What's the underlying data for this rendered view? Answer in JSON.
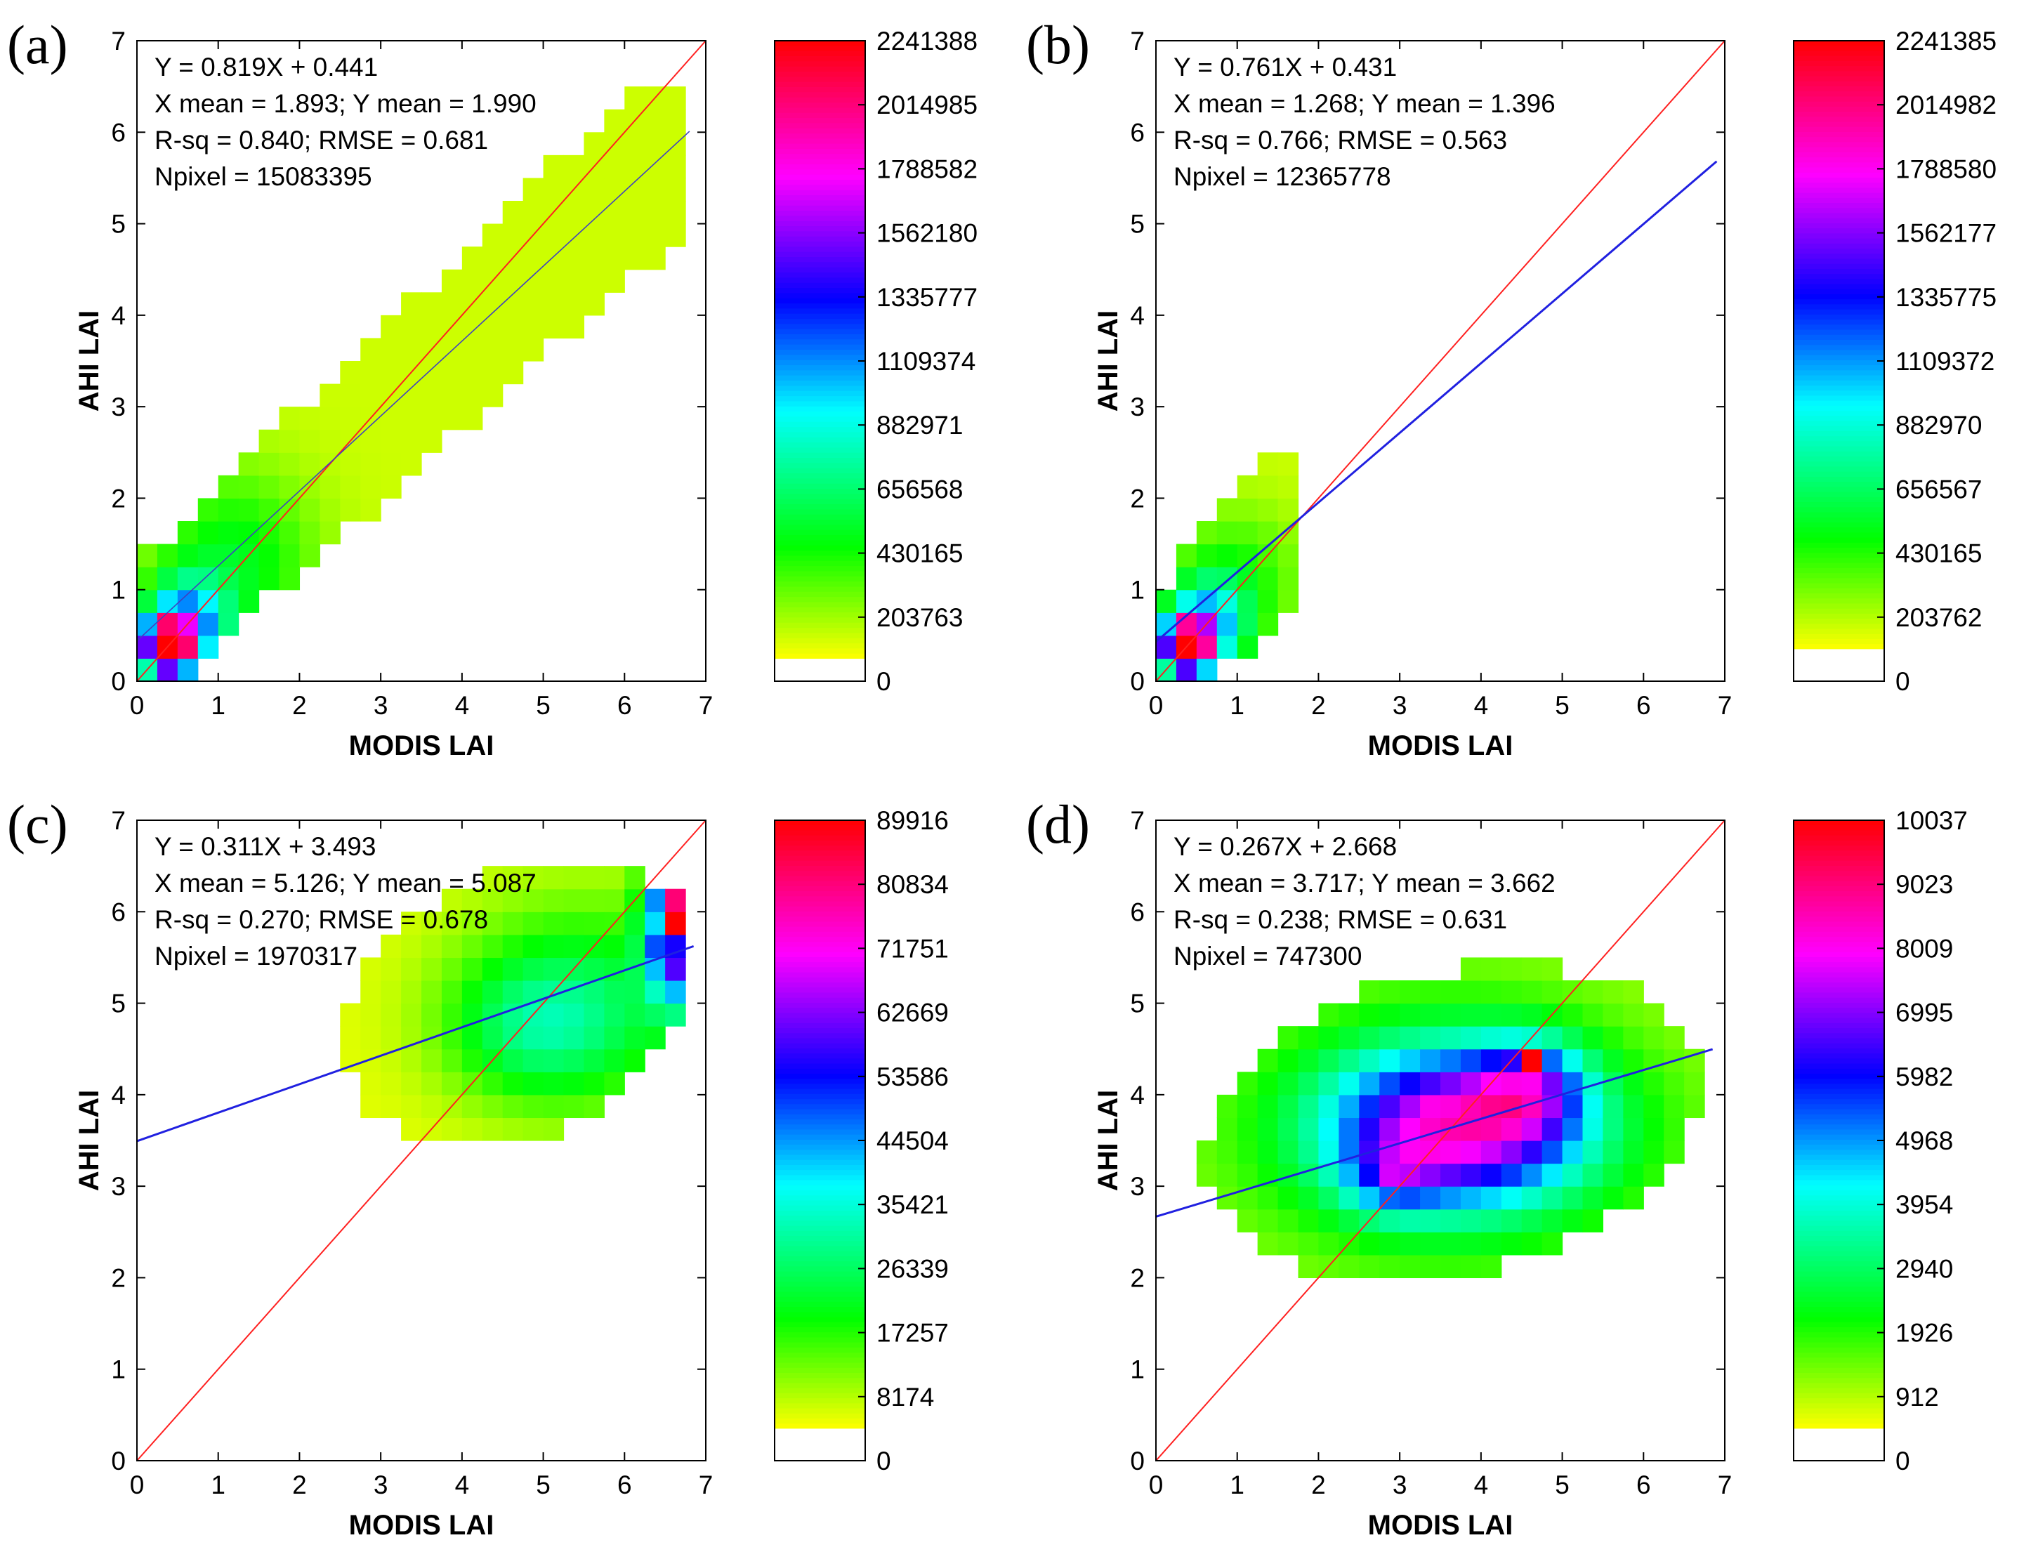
{
  "chart_data": [
    {
      "type": "heatmap",
      "panel_label": "(a)",
      "xlabel": "MODIS LAI",
      "ylabel": "AHI LAI",
      "xlim": [
        0,
        7
      ],
      "ylim": [
        0,
        7
      ],
      "xticks": [
        "0",
        "1",
        "2",
        "3",
        "4",
        "5",
        "6",
        "7"
      ],
      "yticks": [
        "0",
        "1",
        "2",
        "3",
        "4",
        "5",
        "6",
        "7"
      ],
      "stats": [
        "Y = 0.819X + 0.441",
        "X mean = 1.893; Y mean = 1.990",
        "R-sq = 0.840; RMSE = 0.681",
        "Npixel = 15083395"
      ],
      "fit": {
        "slope": 0.819,
        "intercept": 0.441,
        "x_range": [
          0,
          6.8
        ],
        "color": "#4040c0",
        "width": 1.6
      },
      "one_to_one": {
        "x_range": [
          0,
          7
        ],
        "color": "#ff2020"
      },
      "colorbar": {
        "ticks": [
          "2241388",
          "2014985",
          "1788582",
          "1562180",
          "1335777",
          "1109374",
          "882971",
          "656568",
          "430165",
          "203763",
          "0"
        ],
        "min": 0,
        "max": 2241388,
        "white_fraction": 0.035
      },
      "density": {
        "kind": "band",
        "fit_slope": 0.819,
        "fit_intercept": 0.441,
        "x_range": [
          0.1,
          6.8
        ],
        "y_range": [
          0,
          6.5
        ],
        "halfwidth": [
          0.35,
          0.55
        ],
        "min_value": 80000,
        "peaks": [
          {
            "x": 0.375,
            "y": 0.375,
            "sx": 0.2,
            "sy": 0.2,
            "amp": 2241388
          },
          {
            "x": 0.6,
            "y": 0.6,
            "sx": 0.35,
            "sy": 0.35,
            "amp": 1000000
          },
          {
            "x": 1.2,
            "y": 1.3,
            "sx": 0.7,
            "sy": 0.7,
            "amp": 380000
          }
        ],
        "extra_boxes": [
          [
            6.0,
            5.2,
            6.8,
            6.5
          ]
        ]
      }
    },
    {
      "type": "heatmap",
      "panel_label": "(b)",
      "xlabel": "MODIS LAI",
      "ylabel": "AHI LAI",
      "xlim": [
        0,
        7
      ],
      "ylim": [
        0,
        7
      ],
      "xticks": [
        "0",
        "1",
        "2",
        "3",
        "4",
        "5",
        "6",
        "7"
      ],
      "yticks": [
        "0",
        "1",
        "2",
        "3",
        "4",
        "5",
        "6",
        "7"
      ],
      "stats": [
        "Y = 0.761X + 0.431",
        "X mean = 1.268; Y mean = 1.396",
        "R-sq = 0.766; RMSE = 0.563",
        "Npixel = 12365778"
      ],
      "fit": {
        "slope": 0.761,
        "intercept": 0.431,
        "x_range": [
          0,
          6.9
        ],
        "color": "#2020e0",
        "width": 3
      },
      "one_to_one": {
        "x_range": [
          0,
          7
        ],
        "color": "#ff2020"
      },
      "colorbar": {
        "ticks": [
          "2241385",
          "2014982",
          "1788580",
          "1562177",
          "1335775",
          "1109372",
          "882970",
          "656567",
          "430165",
          "203762",
          "0"
        ],
        "min": 0,
        "max": 2241385,
        "white_fraction": 0.05
      },
      "density": {
        "kind": "band",
        "fit_slope": 0.95,
        "fit_intercept": 0.2,
        "x_range": [
          0.1,
          1.8
        ],
        "y_range": [
          0,
          2.5
        ],
        "halfwidth": [
          0.3,
          0.5
        ],
        "min_value": 80000,
        "peaks": [
          {
            "x": 0.375,
            "y": 0.375,
            "sx": 0.2,
            "sy": 0.2,
            "amp": 2241385
          },
          {
            "x": 0.6,
            "y": 0.6,
            "sx": 0.35,
            "sy": 0.35,
            "amp": 900000
          },
          {
            "x": 1.0,
            "y": 1.1,
            "sx": 0.55,
            "sy": 0.55,
            "amp": 300000
          }
        ],
        "extra_boxes": []
      }
    },
    {
      "type": "heatmap",
      "panel_label": "(c)",
      "xlabel": "MODIS LAI",
      "ylabel": "AHI LAI",
      "xlim": [
        0,
        7
      ],
      "ylim": [
        0,
        7
      ],
      "xticks": [
        "0",
        "1",
        "2",
        "3",
        "4",
        "5",
        "6",
        "7"
      ],
      "yticks": [
        "0",
        "1",
        "2",
        "3",
        "4",
        "5",
        "6",
        "7"
      ],
      "stats": [
        "Y = 0.311X + 3.493",
        "X mean = 5.126; Y mean = 5.087",
        "R-sq = 0.270; RMSE = 0.678",
        "Npixel = 1970317"
      ],
      "fit": {
        "slope": 0.311,
        "intercept": 3.493,
        "x_range": [
          0,
          6.85
        ],
        "color": "#2020e0",
        "width": 3
      },
      "one_to_one": {
        "x_range": [
          0,
          7
        ],
        "color": "#ff2020"
      },
      "colorbar": {
        "ticks": [
          "89916",
          "80834",
          "71751",
          "62669",
          "53586",
          "44504",
          "35421",
          "26339",
          "17257",
          "8174",
          "0"
        ],
        "min": 0,
        "max": 89916,
        "white_fraction": 0.05
      },
      "density": {
        "kind": "ellipse",
        "cx": 4.7,
        "cy": 5.0,
        "rx": 2.25,
        "ry": 1.45,
        "rot": 0.35,
        "min_value": 1500,
        "peaks": [
          {
            "x": 6.65,
            "y": 5.9,
            "sx": 0.25,
            "sy": 0.55,
            "amp": 72000
          },
          {
            "x": 5.5,
            "y": 5.0,
            "sx": 1.1,
            "sy": 0.8,
            "amp": 20000
          },
          {
            "x": 4.8,
            "y": 4.7,
            "sx": 0.7,
            "sy": 0.5,
            "amp": 12000
          }
        ],
        "cells": [
          {
            "x": 6.625,
            "y": 6.125,
            "v": 80834
          },
          {
            "x": 6.625,
            "y": 5.875,
            "v": 89916
          },
          {
            "x": 6.625,
            "y": 5.625,
            "v": 53586
          },
          {
            "x": 6.375,
            "y": 5.875,
            "v": 38000
          }
        ]
      }
    },
    {
      "type": "heatmap",
      "panel_label": "(d)",
      "xlabel": "MODIS LAI",
      "ylabel": "AHI LAI",
      "xlim": [
        0,
        7
      ],
      "ylim": [
        0,
        7
      ],
      "xticks": [
        "0",
        "1",
        "2",
        "3",
        "4",
        "5",
        "6",
        "7"
      ],
      "yticks": [
        "0",
        "1",
        "2",
        "3",
        "4",
        "5",
        "6",
        "7"
      ],
      "stats": [
        "Y = 0.267X + 2.668",
        "X mean = 3.717; Y mean = 3.662",
        "R-sq = 0.238; RMSE = 0.631",
        "Npixel = 747300"
      ],
      "fit": {
        "slope": 0.267,
        "intercept": 2.668,
        "x_range": [
          0,
          6.85
        ],
        "color": "#2020e0",
        "width": 3
      },
      "one_to_one": {
        "x_range": [
          0,
          7
        ],
        "color": "#ff2020"
      },
      "colorbar": {
        "ticks": [
          "10037",
          "9023",
          "8009",
          "6995",
          "5982",
          "4968",
          "3954",
          "2940",
          "1926",
          "912",
          "0"
        ],
        "min": 0,
        "max": 10037,
        "white_fraction": 0.05
      },
      "density": {
        "kind": "ellipse",
        "cx": 3.65,
        "cy": 3.7,
        "rx": 3.1,
        "ry": 1.65,
        "rot": 0.18,
        "min_value": 150,
        "peaks": [
          {
            "x": 3.7,
            "y": 3.65,
            "sx": 1.1,
            "sy": 0.6,
            "amp": 6500
          },
          {
            "x": 4.6,
            "y": 4.1,
            "sx": 0.45,
            "sy": 0.35,
            "amp": 3000
          },
          {
            "x": 2.9,
            "y": 3.1,
            "sx": 0.4,
            "sy": 0.3,
            "amp": 1800
          },
          {
            "x": 3.6,
            "y": 3.6,
            "sx": 2.6,
            "sy": 1.5,
            "amp": 1700
          }
        ],
        "cells": [
          {
            "x": 4.625,
            "y": 4.375,
            "v": 10037
          },
          {
            "x": 4.375,
            "y": 4.125,
            "v": 8009
          },
          {
            "x": 3.375,
            "y": 3.875,
            "v": 8009
          },
          {
            "x": 2.875,
            "y": 3.125,
            "v": 7500
          },
          {
            "x": 3.125,
            "y": 3.125,
            "v": 7300
          }
        ]
      }
    }
  ]
}
